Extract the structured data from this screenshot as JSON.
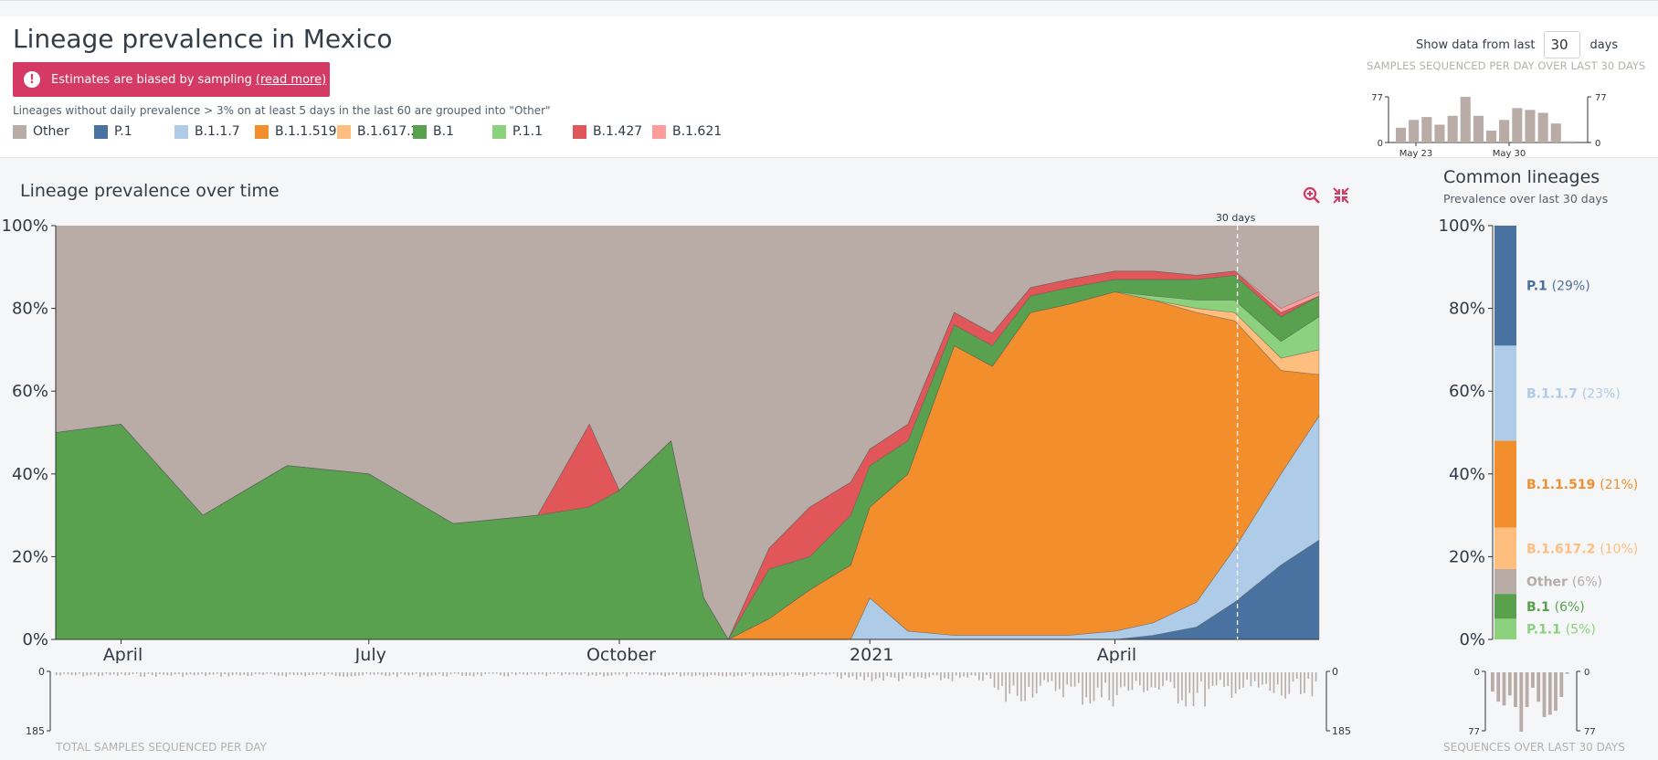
{
  "header": {
    "title": "Lineage prevalence in Mexico",
    "alert_text": "Estimates are biased by sampling",
    "alert_link": "(read more)",
    "grouping_note": "Lineages without daily prevalence > 3% on at least 5 days in the last 60 are grouped into \"Other\"",
    "show_label": "Show data from last",
    "days_value": "30",
    "days_label": "days",
    "mini_title": "SAMPLES SEQUENCED PER DAY OVER LAST 30 DAYS"
  },
  "legend": [
    {
      "label": "Other",
      "color": "#b9aca6"
    },
    {
      "label": "P.1",
      "color": "#4a72a0"
    },
    {
      "label": "B.1.1.7",
      "color": "#aecbe7"
    },
    {
      "label": "B.1.1.519",
      "color": "#f28e2b"
    },
    {
      "label": "B.1.617.2",
      "color": "#ffbe7d"
    },
    {
      "label": "B.1",
      "color": "#59a14f"
    },
    {
      "label": "P.1.1",
      "color": "#8cd17d"
    },
    {
      "label": "B.1.427",
      "color": "#e15759"
    },
    {
      "label": "B.1.621",
      "color": "#ff9d9a"
    }
  ],
  "main": {
    "section_title": "Lineage prevalence over time",
    "zoom_icon": "zoom-in-icon",
    "collapse_icon": "compress-icon",
    "window_label": "30 days",
    "bottom_label": "TOTAL SAMPLES SEQUENCED PER DAY",
    "bottom_axis": {
      "top": "0",
      "bottom": "185"
    }
  },
  "common": {
    "title": "Common lineages",
    "subtitle": "Prevalence over last 30 days",
    "bottom_label": "SEQUENCES OVER LAST 30 DAYS",
    "bottom_axis": {
      "top": "0",
      "bottom": "77"
    }
  },
  "chart_data": [
    {
      "type": "area",
      "title": "Lineage prevalence over time",
      "x_tick_labels": [
        "April",
        "July",
        "October",
        "2021",
        "April"
      ],
      "y_tick_labels": [
        "0%",
        "20%",
        "40%",
        "60%",
        "80%",
        "100%"
      ],
      "ylim": [
        0,
        100
      ],
      "x_dates": [
        "2020-03-08",
        "2020-04-01",
        "2020-05-01",
        "2020-06-01",
        "2020-07-01",
        "2020-08-01",
        "2020-09-01",
        "2020-09-20",
        "2020-10-01",
        "2020-10-20",
        "2020-11-01",
        "2020-11-10",
        "2020-11-25",
        "2020-12-10",
        "2020-12-25",
        "2021-01-01",
        "2021-01-15",
        "2021-02-01",
        "2021-02-15",
        "2021-03-01",
        "2021-03-15",
        "2021-04-01",
        "2021-04-15",
        "2021-05-01",
        "2021-05-15",
        "2021-06-01",
        "2021-06-15"
      ],
      "series": [
        {
          "name": "P.1",
          "values": [
            0,
            0,
            0,
            0,
            0,
            0,
            0,
            0,
            0,
            0,
            0,
            0,
            0,
            0,
            0,
            0,
            0,
            0,
            0,
            0,
            0,
            0,
            1,
            3,
            9,
            18,
            24
          ]
        },
        {
          "name": "B.1.1.7",
          "values": [
            0,
            0,
            0,
            0,
            0,
            0,
            0,
            0,
            0,
            0,
            0,
            0,
            0,
            0,
            0,
            10,
            2,
            1,
            1,
            1,
            1,
            2,
            3,
            6,
            13,
            22,
            30
          ]
        },
        {
          "name": "B.1.1.519",
          "values": [
            0,
            0,
            0,
            0,
            0,
            0,
            0,
            0,
            0,
            0,
            0,
            0,
            5,
            12,
            18,
            22,
            38,
            70,
            65,
            78,
            80,
            82,
            78,
            70,
            55,
            25,
            10
          ]
        },
        {
          "name": "B.1.617.2",
          "values": [
            0,
            0,
            0,
            0,
            0,
            0,
            0,
            0,
            0,
            0,
            0,
            0,
            0,
            0,
            0,
            0,
            0,
            0,
            0,
            0,
            0,
            0,
            0,
            1,
            2,
            3,
            6
          ]
        },
        {
          "name": "P.1.1",
          "values": [
            0,
            0,
            0,
            0,
            0,
            0,
            0,
            0,
            0,
            0,
            0,
            0,
            0,
            0,
            0,
            0,
            0,
            0,
            0,
            0,
            0,
            0,
            1,
            2,
            3,
            4,
            8
          ]
        },
        {
          "name": "B.1",
          "values": [
            50,
            52,
            30,
            42,
            40,
            28,
            30,
            32,
            36,
            48,
            10,
            0,
            12,
            8,
            12,
            10,
            8,
            5,
            5,
            4,
            4,
            3,
            4,
            5,
            6,
            6,
            5
          ]
        },
        {
          "name": "B.1.427",
          "values": [
            0,
            0,
            0,
            0,
            0,
            0,
            0,
            20,
            0,
            0,
            0,
            0,
            5,
            12,
            8,
            4,
            4,
            3,
            3,
            2,
            2,
            2,
            2,
            1,
            1,
            1,
            0
          ]
        },
        {
          "name": "B.1.621",
          "values": [
            0,
            0,
            0,
            0,
            0,
            0,
            0,
            0,
            0,
            0,
            0,
            0,
            0,
            0,
            0,
            0,
            0,
            0,
            0,
            0,
            0,
            0,
            0,
            0,
            0,
            1,
            1
          ]
        }
      ],
      "series_other": {
        "name": "Other",
        "note": "remainder to 100%"
      }
    },
    {
      "type": "bar",
      "title": "Common lineages",
      "subtitle": "Prevalence over last 30 days",
      "stacked": true,
      "y_tick_labels": [
        "0%",
        "20%",
        "40%",
        "60%",
        "80%",
        "100%"
      ],
      "ylim": [
        0,
        100
      ],
      "categories": [
        "P.1",
        "B.1.1.7",
        "B.1.1.519",
        "B.1.617.2",
        "Other",
        "B.1",
        "P.1.1"
      ],
      "values": [
        29,
        23,
        21,
        10,
        6,
        6,
        5
      ],
      "value_labels": [
        "(29%)",
        "(23%)",
        "(21%)",
        "(10%)",
        "(6%)",
        "(6%)",
        "(5%)"
      ]
    },
    {
      "type": "bar",
      "title": "SAMPLES SEQUENCED PER DAY OVER LAST 30 DAYS",
      "x_tick_labels": [
        "May 23",
        "May 30"
      ],
      "y_tick_labels": [
        "0",
        "77"
      ],
      "ylim": [
        0,
        77
      ],
      "values": [
        25,
        38,
        43,
        30,
        45,
        77,
        45,
        20,
        38,
        58,
        55,
        50,
        32,
        2
      ]
    },
    {
      "type": "bar",
      "title": "TOTAL SAMPLES SEQUENCED PER DAY",
      "y_tick_labels": [
        "0",
        "185"
      ],
      "ylim": [
        0,
        185
      ],
      "inverted": true,
      "values_note": "daily sample counts, small (≈5-20) through 2020, rising to ≈60-140 in 2021"
    },
    {
      "type": "bar",
      "title": "SEQUENCES OVER LAST 30 DAYS",
      "y_tick_labels": [
        "0",
        "77"
      ],
      "ylim": [
        0,
        77
      ],
      "inverted": true,
      "values": [
        25,
        38,
        43,
        30,
        45,
        77,
        45,
        20,
        38,
        58,
        55,
        50,
        32,
        2
      ]
    }
  ]
}
